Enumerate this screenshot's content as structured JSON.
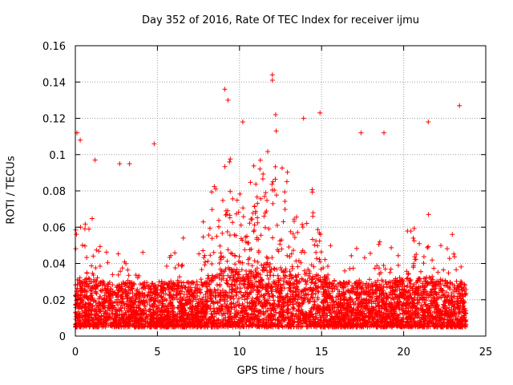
{
  "chart_data": {
    "type": "scatter",
    "title": "Day 352 of 2016, Rate Of TEC Index for receiver ijmu",
    "xlabel": "GPS time / hours",
    "ylabel": "ROTI / TECUs",
    "xlim": [
      0,
      25
    ],
    "ylim": [
      0,
      0.16
    ],
    "xticks": [
      0,
      5,
      10,
      15,
      20,
      25
    ],
    "xtick_labels": [
      "0",
      "5",
      "10",
      "15",
      "20",
      "25"
    ],
    "yticks": [
      0,
      0.02,
      0.04,
      0.06,
      0.08,
      0.1,
      0.12,
      0.14,
      0.16
    ],
    "ytick_labels": [
      "0",
      "0.02",
      "0.04",
      "0.06",
      "0.08",
      "0.1",
      "0.12",
      "0.14",
      "0.16"
    ],
    "grid": true,
    "marker": "+",
    "color": "#ff0000",
    "x_data_extent": [
      0,
      23.8
    ],
    "y_typical_band": [
      0.005,
      0.04
    ],
    "series": [
      {
        "name": "ROTI",
        "highlights": [
          {
            "x": 0.1,
            "y": 0.112
          },
          {
            "x": 0.3,
            "y": 0.108
          },
          {
            "x": 1.2,
            "y": 0.097
          },
          {
            "x": 2.7,
            "y": 0.095
          },
          {
            "x": 3.3,
            "y": 0.095
          },
          {
            "x": 4.8,
            "y": 0.106
          },
          {
            "x": 9.1,
            "y": 0.136
          },
          {
            "x": 9.3,
            "y": 0.13
          },
          {
            "x": 10.2,
            "y": 0.118
          },
          {
            "x": 12.0,
            "y": 0.144
          },
          {
            "x": 12.0,
            "y": 0.141
          },
          {
            "x": 12.2,
            "y": 0.122
          },
          {
            "x": 13.9,
            "y": 0.12
          },
          {
            "x": 14.9,
            "y": 0.123
          },
          {
            "x": 17.4,
            "y": 0.112
          },
          {
            "x": 18.8,
            "y": 0.112
          },
          {
            "x": 21.5,
            "y": 0.118
          },
          {
            "x": 23.4,
            "y": 0.127
          }
        ]
      }
    ]
  }
}
